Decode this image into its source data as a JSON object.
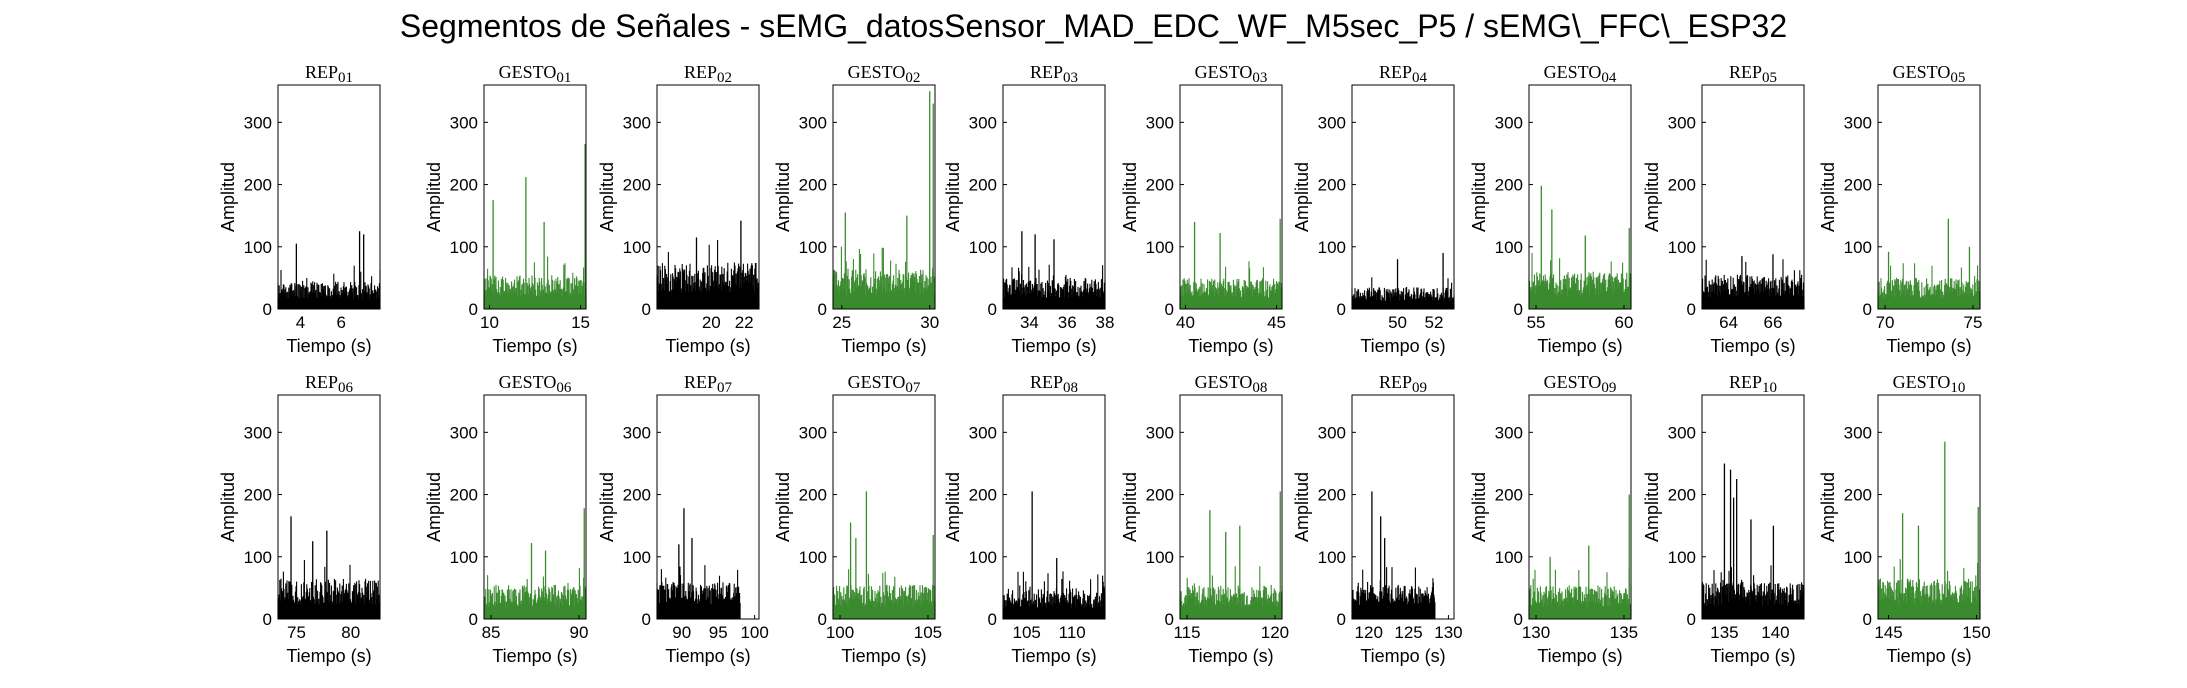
{
  "title": "Segmentos de Señales - sEMG_datosSensor_MAD_EDC_WF_M5sec_P5 / sEMG\\_FFC\\_ESP32",
  "colors": {
    "rep": "#000000",
    "gesto": "#3a8a2e"
  },
  "chart_data": {
    "type": "area",
    "grid": false,
    "shared": {
      "ylabel": "Amplitud",
      "xlabel": "Tiempo (s)",
      "ylim": [
        0,
        360
      ],
      "yticks": [
        0,
        100,
        200,
        300
      ]
    },
    "panels": [
      {
        "title": "REP_01",
        "kind": "rep",
        "xlim": [
          2.9,
          7.9
        ],
        "xticks": [
          4,
          6
        ],
        "base": 45,
        "spikes": [
          [
            3.8,
            105
          ],
          [
            6.9,
            125
          ],
          [
            7.1,
            120
          ]
        ],
        "seed": 11
      },
      {
        "title": "GESTO_01",
        "kind": "gesto",
        "xlim": [
          9.7,
          15.3
        ],
        "xticks": [
          10,
          15
        ],
        "base": 55,
        "spikes": [
          [
            10.2,
            175
          ],
          [
            12.0,
            212
          ],
          [
            13.0,
            140
          ],
          [
            15.25,
            265
          ]
        ],
        "seed": 12
      },
      {
        "title": "REP_02",
        "kind": "rep",
        "xlim": [
          16.7,
          22.9
        ],
        "xticks": [
          20,
          22
        ],
        "base": 75,
        "spikes": [
          [
            21.8,
            142
          ],
          [
            19.1,
            115
          ]
        ],
        "seed": 13
      },
      {
        "title": "GESTO_02",
        "kind": "gesto",
        "xlim": [
          24.5,
          30.3
        ],
        "xticks": [
          25,
          30
        ],
        "base": 65,
        "spikes": [
          [
            25.2,
            155
          ],
          [
            28.7,
            150
          ],
          [
            30.0,
            350
          ],
          [
            30.2,
            330
          ]
        ],
        "seed": 14
      },
      {
        "title": "REP_03",
        "kind": "rep",
        "xlim": [
          32.6,
          38.0
        ],
        "xticks": [
          34,
          36,
          38
        ],
        "base": 50,
        "spikes": [
          [
            33.6,
            125
          ],
          [
            34.3,
            120
          ],
          [
            35.3,
            112
          ]
        ],
        "seed": 15
      },
      {
        "title": "GESTO_03",
        "kind": "gesto",
        "xlim": [
          39.7,
          45.3
        ],
        "xticks": [
          40,
          45
        ],
        "base": 50,
        "spikes": [
          [
            40.5,
            140
          ],
          [
            45.2,
            145
          ],
          [
            41.9,
            122
          ]
        ],
        "seed": 16
      },
      {
        "title": "REP_04",
        "kind": "rep",
        "xlim": [
          47.5,
          53.1
        ],
        "xticks": [
          50,
          52
        ],
        "base": 35,
        "spikes": [
          [
            50.0,
            80
          ],
          [
            52.5,
            90
          ]
        ],
        "seed": 17
      },
      {
        "title": "GESTO_04",
        "kind": "gesto",
        "xlim": [
          54.6,
          60.4
        ],
        "xticks": [
          55,
          60
        ],
        "base": 60,
        "spikes": [
          [
            55.3,
            198
          ],
          [
            55.9,
            160
          ],
          [
            57.8,
            118
          ],
          [
            60.3,
            130
          ]
        ],
        "seed": 18
      },
      {
        "title": "REP_05",
        "kind": "rep",
        "xlim": [
          62.8,
          67.4
        ],
        "xticks": [
          64,
          66
        ],
        "base": 55,
        "spikes": [
          [
            66.0,
            88
          ],
          [
            64.6,
            85
          ]
        ],
        "seed": 19
      },
      {
        "title": "GESTO_05",
        "kind": "gesto",
        "xlim": [
          69.6,
          75.4
        ],
        "xticks": [
          70,
          75
        ],
        "base": 50,
        "spikes": [
          [
            70.2,
            92
          ],
          [
            73.6,
            145
          ],
          [
            74.8,
            100
          ]
        ],
        "seed": 20
      },
      {
        "title": "REP_06",
        "kind": "rep",
        "xlim": [
          73.3,
          82.7
        ],
        "xticks": [
          75,
          80
        ],
        "base": 65,
        "spikes": [
          [
            74.5,
            165
          ],
          [
            77.8,
            142
          ],
          [
            76.5,
            125
          ]
        ],
        "seed": 21
      },
      {
        "title": "GESTO_06",
        "kind": "gesto",
        "xlim": [
          84.6,
          90.4
        ],
        "xticks": [
          85,
          90
        ],
        "base": 55,
        "spikes": [
          [
            87.3,
            122
          ],
          [
            90.3,
            178
          ],
          [
            88.1,
            110
          ]
        ],
        "seed": 22
      },
      {
        "title": "REP_07",
        "kind": "rep",
        "xlim": [
          86.6,
          100.6
        ],
        "xticks": [
          90,
          95,
          100
        ],
        "base": 60,
        "spikes": [
          [
            90.3,
            178
          ],
          [
            91.4,
            130
          ],
          [
            89.6,
            120
          ]
        ],
        "seed": 23,
        "end": 98.0
      },
      {
        "title": "GESTO_07",
        "kind": "gesto",
        "xlim": [
          99.6,
          105.4
        ],
        "xticks": [
          100,
          105
        ],
        "base": 55,
        "spikes": [
          [
            100.6,
            155
          ],
          [
            101.5,
            205
          ],
          [
            100.9,
            130
          ],
          [
            105.3,
            135
          ]
        ],
        "seed": 24
      },
      {
        "title": "REP_08",
        "kind": "rep",
        "xlim": [
          102.4,
          113.6
        ],
        "xticks": [
          105,
          110
        ],
        "base": 50,
        "spikes": [
          [
            105.6,
            205
          ],
          [
            108.3,
            98
          ]
        ],
        "seed": 25
      },
      {
        "title": "GESTO_08",
        "kind": "gesto",
        "xlim": [
          114.6,
          120.4
        ],
        "xticks": [
          115,
          120
        ],
        "base": 55,
        "spikes": [
          [
            116.3,
            175
          ],
          [
            118.0,
            150
          ],
          [
            120.3,
            205
          ],
          [
            117.2,
            140
          ]
        ],
        "seed": 26
      },
      {
        "title": "REP_09",
        "kind": "rep",
        "xlim": [
          117.9,
          130.7
        ],
        "xticks": [
          120,
          125,
          130
        ],
        "base": 55,
        "spikes": [
          [
            120.4,
            205
          ],
          [
            121.5,
            165
          ],
          [
            122.0,
            130
          ]
        ],
        "seed": 27,
        "end": 128.3
      },
      {
        "title": "GESTO_09",
        "kind": "gesto",
        "xlim": [
          129.6,
          135.4
        ],
        "xticks": [
          130,
          135
        ],
        "base": 55,
        "spikes": [
          [
            130.8,
            100
          ],
          [
            135.3,
            200
          ],
          [
            133.0,
            118
          ]
        ],
        "seed": 28
      },
      {
        "title": "REP_10",
        "kind": "rep",
        "xlim": [
          132.8,
          142.8
        ],
        "xticks": [
          135,
          140
        ],
        "base": 60,
        "spikes": [
          [
            135.0,
            250
          ],
          [
            135.6,
            240
          ],
          [
            136.2,
            225
          ],
          [
            135.9,
            195
          ],
          [
            137.6,
            160
          ],
          [
            139.8,
            150
          ]
        ],
        "seed": 29
      },
      {
        "title": "GESTO_10",
        "kind": "gesto",
        "xlim": [
          144.4,
          150.2
        ],
        "xticks": [
          145,
          150
        ],
        "base": 65,
        "spikes": [
          [
            148.2,
            285
          ],
          [
            145.8,
            170
          ],
          [
            150.1,
            180
          ],
          [
            146.7,
            150
          ]
        ],
        "seed": 30
      }
    ]
  }
}
